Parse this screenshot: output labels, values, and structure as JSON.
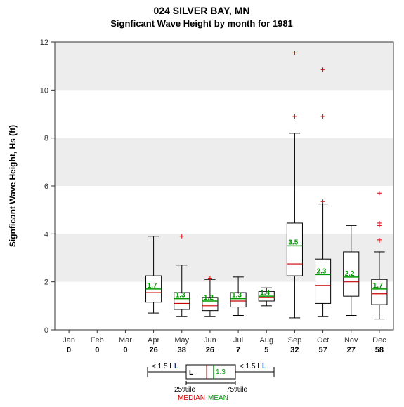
{
  "title_line1": "024   SILVER BAY, MN",
  "title_line2": "Signficant Wave Height by month for 1981",
  "ylabel": "Signficant Wave Height, Hs (ft)",
  "chart": {
    "type": "boxplot",
    "background_color": "#ffffff",
    "band_color": "#ededed",
    "axis_color": "#333333",
    "box_fill": "#ffffff",
    "box_stroke": "#000000",
    "median_color": "#cc0000",
    "mean_color": "#009900",
    "outlier_color": "#dd0000",
    "whisker_color": "#000000",
    "ylim": [
      0,
      12
    ],
    "ytick_step": 2,
    "months": [
      "Jan",
      "Feb",
      "Mar",
      "Apr",
      "May",
      "Jun",
      "Jul",
      "Aug",
      "Sep",
      "Oct",
      "Nov",
      "Dec"
    ],
    "counts": [
      0,
      0,
      0,
      26,
      38,
      26,
      7,
      5,
      32,
      57,
      27,
      58
    ],
    "boxes": [
      null,
      null,
      null,
      {
        "low": 0.7,
        "q1": 1.15,
        "median": 1.55,
        "q3": 2.25,
        "high": 3.9,
        "mean": 1.7,
        "outliers": []
      },
      {
        "low": 0.55,
        "q1": 0.85,
        "median": 1.1,
        "q3": 1.55,
        "high": 2.7,
        "mean": 1.3,
        "outliers": [
          3.9
        ]
      },
      {
        "low": 0.55,
        "q1": 0.8,
        "median": 1.0,
        "q3": 1.35,
        "high": 2.1,
        "mean": 1.2,
        "outliers": [
          2.15
        ]
      },
      {
        "low": 0.6,
        "q1": 0.95,
        "median": 1.2,
        "q3": 1.55,
        "high": 2.2,
        "mean": 1.3,
        "outliers": []
      },
      {
        "low": 1.0,
        "q1": 1.2,
        "median": 1.35,
        "q3": 1.6,
        "high": 1.75,
        "mean": 1.4,
        "outliers": []
      },
      {
        "low": 0.5,
        "q1": 2.25,
        "median": 2.75,
        "q3": 4.45,
        "high": 8.2,
        "mean": 3.5,
        "outliers": [
          8.9,
          11.55
        ]
      },
      {
        "low": 0.55,
        "q1": 1.1,
        "median": 1.85,
        "q3": 2.95,
        "high": 5.25,
        "mean": 2.3,
        "outliers": [
          5.35,
          8.9,
          10.85
        ]
      },
      {
        "low": 0.6,
        "q1": 1.4,
        "median": 2.0,
        "q3": 3.25,
        "high": 4.35,
        "mean": 2.2,
        "outliers": []
      },
      {
        "low": 0.45,
        "q1": 1.05,
        "median": 1.5,
        "q3": 2.1,
        "high": 3.25,
        "mean": 1.7,
        "outliers": [
          3.7,
          3.75,
          4.35,
          4.45,
          5.7
        ]
      }
    ]
  },
  "legend": {
    "whisker_left": "< 1.5 L",
    "whisker_right": "< 1.5 L",
    "q1_label": "25%ile",
    "q3_label": "75%ile",
    "L": "L",
    "median": "MEDIAN",
    "mean": "MEAN",
    "mean_val": "1.3"
  }
}
